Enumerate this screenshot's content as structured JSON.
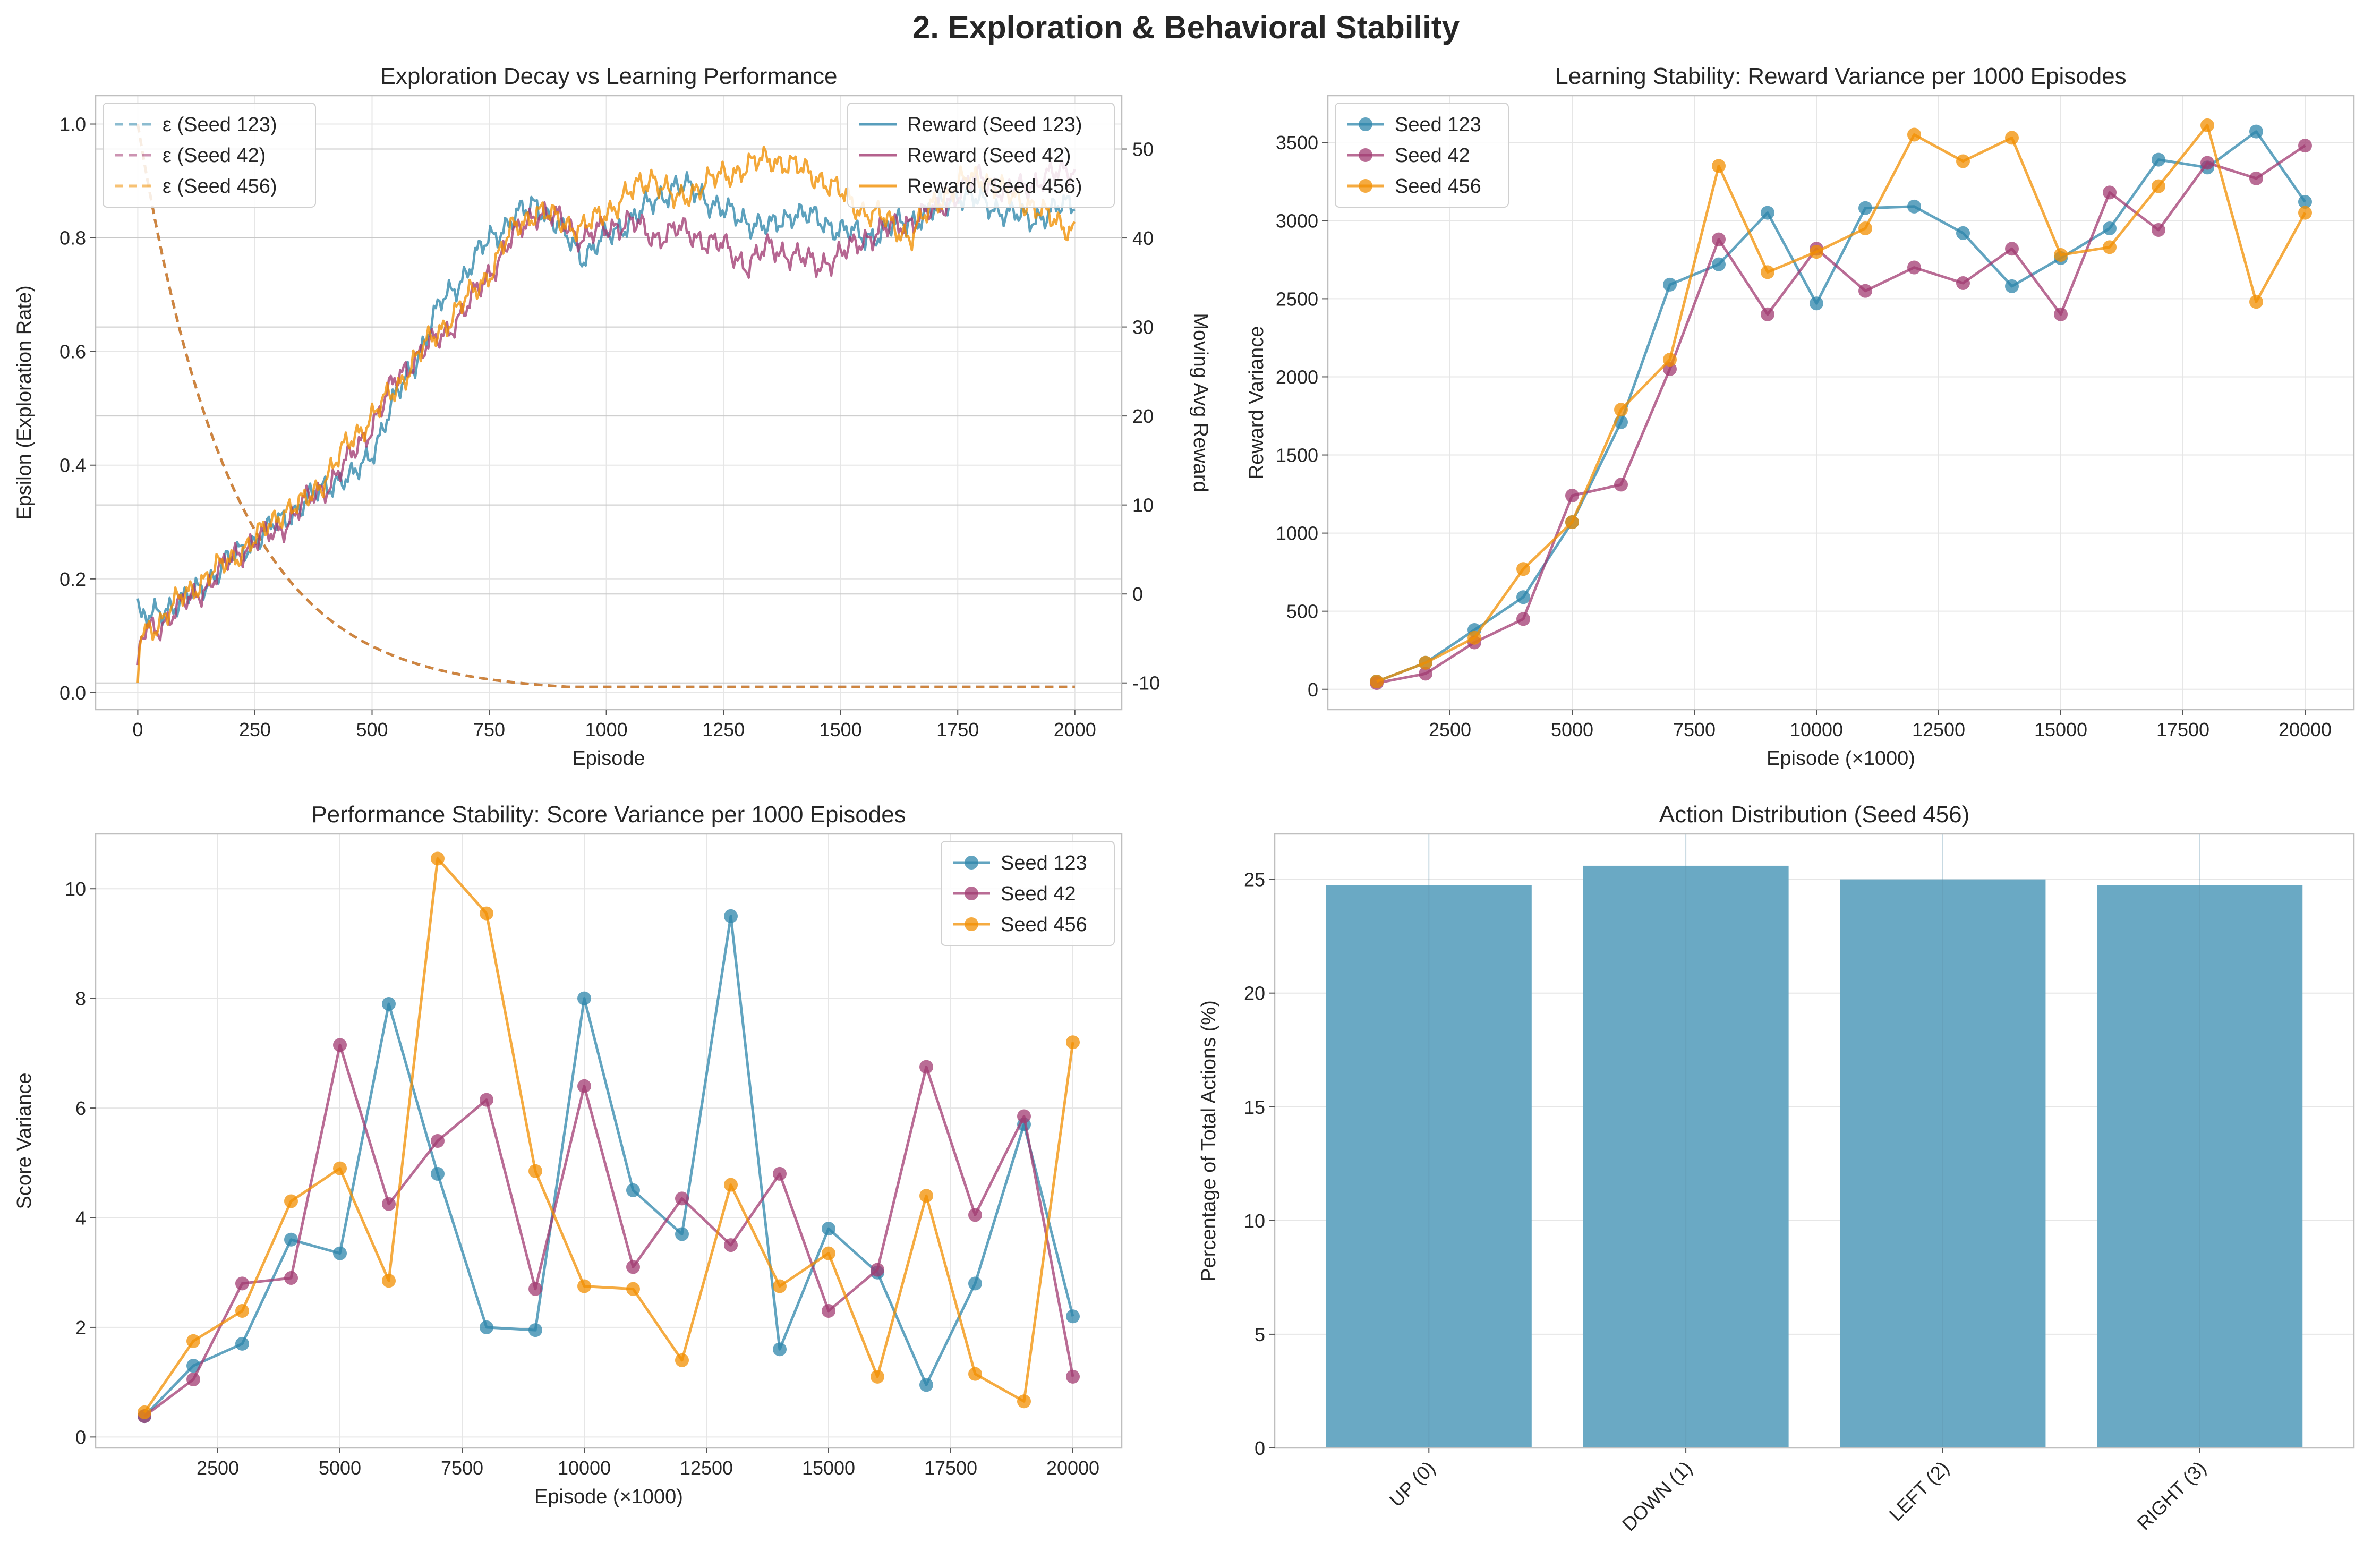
{
  "suptitle": "2. Exploration & Behavioral Stability",
  "colors": {
    "seed123": "#2E86AB",
    "seed42": "#A23B72",
    "seed456": "#F18F01",
    "bar": "#6AA9C4",
    "grid": "#E6E6E6",
    "axis": "#BFBFBF"
  },
  "chart_data": [
    {
      "type": "line",
      "title": "Exploration Decay vs Learning Performance",
      "xlabel": "Episode",
      "ylabel": "Epsilon (Exploration Rate)",
      "ylabel_right": "Moving Avg Reward",
      "xlim": [
        -90,
        2100
      ],
      "ylim": [
        -0.03,
        1.05
      ],
      "ylim_right": [
        -13,
        56
      ],
      "xticks": [
        0,
        250,
        500,
        750,
        1000,
        1250,
        1500,
        1750,
        2000
      ],
      "yticks": [
        0.0,
        0.2,
        0.4,
        0.6,
        0.8,
        1.0
      ],
      "yticks_right": [
        -10,
        0,
        10,
        20,
        30,
        40,
        50
      ],
      "grid": true,
      "legend_left": {
        "placement": "upper-left",
        "entries": [
          "ε (Seed 123)",
          "ε (Seed 42)",
          "ε (Seed 456)"
        ]
      },
      "legend_right": {
        "placement": "upper-right",
        "entries": [
          "Reward (Seed 123)",
          "Reward (Seed 42)",
          "Reward (Seed 456)"
        ]
      },
      "epsilon": {
        "x_max": 2000,
        "start": 1.0,
        "min": 0.01,
        "decay_per_episode": 0.995,
        "style": "dashed"
      },
      "reward_series": [
        {
          "name": "Reward (Seed 123)",
          "x": [
            0,
            5,
            10,
            30,
            60,
            90,
            120,
            160,
            200,
            250,
            300,
            350,
            400,
            430,
            460,
            500,
            550,
            600,
            650,
            700,
            750,
            800,
            850,
            900,
            950,
            1000,
            1050,
            1100,
            1150,
            1200,
            1250,
            1300,
            1350,
            1400,
            1450,
            1500,
            1550,
            1600,
            1650,
            1700,
            1750,
            1800,
            1850,
            1900,
            1950,
            2000
          ],
          "y": [
            -0.5,
            -2,
            -3,
            -2.5,
            -1.5,
            -1,
            0,
            2,
            4,
            6,
            8,
            10,
            12,
            13,
            13,
            16,
            22,
            27,
            33,
            36,
            40,
            42,
            44,
            41,
            38,
            40,
            42,
            44,
            46,
            45,
            43,
            42,
            41,
            43,
            42,
            41,
            40,
            41,
            42,
            43,
            45,
            44,
            43,
            42,
            43,
            44
          ]
        },
        {
          "name": "Reward (Seed 42)",
          "x": [
            0,
            5,
            20,
            50,
            100,
            150,
            200,
            250,
            300,
            350,
            400,
            450,
            500,
            550,
            600,
            650,
            700,
            750,
            800,
            850,
            900,
            950,
            1000,
            1050,
            1100,
            1150,
            1200,
            1250,
            1300,
            1350,
            1400,
            1450,
            1500,
            1550,
            1600,
            1650,
            1700,
            1750,
            1800,
            1850,
            1900,
            1950,
            2000
          ],
          "y": [
            -8,
            -5,
            -4,
            -3.5,
            -1,
            1,
            4,
            6,
            7,
            10,
            12,
            15,
            19,
            24,
            27,
            29,
            32,
            36,
            40,
            43,
            42,
            40,
            41,
            42,
            40,
            41,
            40,
            39,
            37,
            39,
            38,
            37,
            38,
            40,
            41,
            42,
            43,
            45,
            47,
            45,
            46,
            47,
            48
          ]
        },
        {
          "name": "Reward (Seed 456)",
          "x": [
            0,
            5,
            20,
            50,
            100,
            150,
            200,
            250,
            300,
            350,
            400,
            450,
            500,
            550,
            600,
            650,
            700,
            750,
            800,
            850,
            900,
            950,
            1000,
            1050,
            1100,
            1150,
            1200,
            1250,
            1300,
            1350,
            1400,
            1450,
            1500,
            1550,
            1600,
            1650,
            1700,
            1750,
            1800,
            1850,
            1900,
            1950,
            2000
          ],
          "y": [
            -10,
            -5,
            -4,
            -3,
            0,
            2,
            4,
            6,
            9,
            10,
            13,
            17,
            20,
            23,
            27,
            30,
            33,
            36,
            41,
            43,
            42,
            41,
            43,
            45,
            47,
            44,
            46,
            47,
            48,
            49,
            48,
            47,
            45,
            43,
            42,
            40,
            44,
            46,
            47,
            45,
            44,
            42,
            41
          ]
        }
      ]
    },
    {
      "type": "line",
      "title": "Learning Stability: Reward Variance per 1000 Episodes",
      "xlabel": "Episode (×1000)",
      "ylabel": "Reward Variance",
      "xlim": [
        0,
        21000
      ],
      "ylim": [
        -130,
        3800
      ],
      "xticks": [
        2500,
        5000,
        7500,
        10000,
        12500,
        15000,
        17500,
        20000
      ],
      "yticks": [
        0,
        500,
        1000,
        1500,
        2000,
        2500,
        3000,
        3500
      ],
      "grid": true,
      "legend": {
        "placement": "upper-left"
      },
      "x": [
        1000,
        2000,
        3000,
        4000,
        5000,
        6000,
        7000,
        8000,
        9000,
        10000,
        11000,
        12000,
        13000,
        14000,
        15000,
        16000,
        17000,
        18000,
        19000,
        20000
      ],
      "series": [
        {
          "name": "Seed 123",
          "values": [
            50,
            170,
            380,
            590,
            1070,
            1710,
            2590,
            2720,
            3050,
            2470,
            3080,
            3090,
            2920,
            2580,
            2760,
            2950,
            3390,
            3340,
            3570,
            3120
          ]
        },
        {
          "name": "Seed 42",
          "values": [
            40,
            100,
            300,
            450,
            1240,
            1310,
            2050,
            2880,
            2400,
            2820,
            2550,
            2700,
            2600,
            2820,
            2400,
            3180,
            2940,
            3370,
            3270,
            3480
          ]
        },
        {
          "name": "Seed 456",
          "values": [
            50,
            170,
            330,
            770,
            1070,
            1790,
            2110,
            3350,
            2670,
            2800,
            2950,
            3550,
            3380,
            3530,
            2780,
            2830,
            3220,
            3610,
            2480,
            3050
          ]
        }
      ]
    },
    {
      "type": "line",
      "title": "Performance Stability: Score Variance per 1000 Episodes",
      "xlabel": "Episode (×1000)",
      "ylabel": "Score Variance",
      "xlim": [
        0,
        21000
      ],
      "ylim": [
        -0.2,
        11.0
      ],
      "xticks": [
        2500,
        5000,
        7500,
        10000,
        12500,
        15000,
        17500,
        20000
      ],
      "yticks": [
        0,
        2,
        4,
        6,
        8,
        10
      ],
      "grid": true,
      "legend": {
        "placement": "upper-right"
      },
      "x": [
        1000,
        2000,
        3000,
        4000,
        5000,
        6000,
        7000,
        8000,
        9000,
        10000,
        11000,
        12000,
        13000,
        14000,
        15000,
        16000,
        17000,
        18000,
        19000,
        20000
      ],
      "series": [
        {
          "name": "Seed 123",
          "values": [
            0.38,
            1.3,
            1.7,
            3.6,
            3.35,
            7.9,
            4.8,
            2.0,
            1.95,
            8.0,
            4.5,
            3.7,
            9.5,
            1.6,
            3.8,
            3.0,
            0.95,
            2.8,
            5.7,
            2.2
          ]
        },
        {
          "name": "Seed 42",
          "values": [
            0.38,
            1.05,
            2.8,
            2.9,
            7.15,
            4.25,
            5.4,
            6.15,
            2.7,
            6.4,
            3.1,
            4.35,
            3.5,
            4.8,
            2.3,
            3.05,
            6.75,
            4.05,
            5.85,
            1.1
          ]
        },
        {
          "name": "Seed 456",
          "values": [
            0.45,
            1.75,
            2.3,
            4.3,
            4.9,
            2.85,
            10.55,
            9.55,
            4.85,
            2.75,
            2.7,
            1.4,
            4.6,
            2.75,
            3.35,
            1.1,
            4.4,
            1.15,
            0.65,
            7.2
          ]
        }
      ]
    },
    {
      "type": "bar",
      "title": "Action Distribution (Seed 456)",
      "ylabel": "Percentage of Total Actions (%)",
      "ylim": [
        0,
        27
      ],
      "yticks": [
        0,
        5,
        10,
        15,
        20,
        25
      ],
      "grid": true,
      "categories": [
        "UP (0)",
        "DOWN (1)",
        "LEFT (2)",
        "RIGHT (3)"
      ],
      "values": [
        24.75,
        25.6,
        25.0,
        24.75
      ]
    }
  ]
}
